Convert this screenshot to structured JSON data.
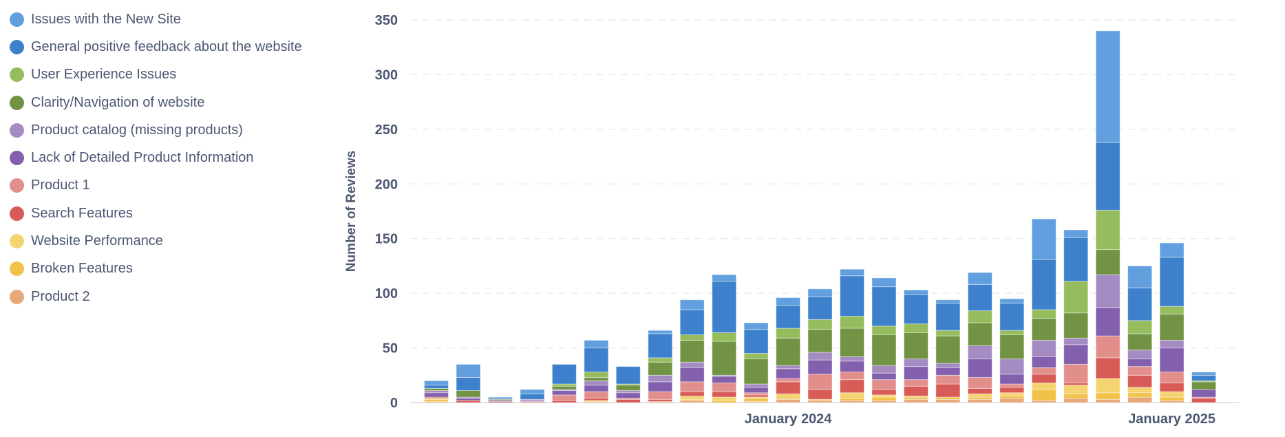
{
  "chart_data": {
    "type": "bar",
    "stacked": true,
    "ylabel": "Number of Reviews",
    "xlabel": "",
    "ylim": [
      0,
      350
    ],
    "yticks": [
      0,
      50,
      100,
      150,
      200,
      250,
      300,
      350
    ],
    "grid": true,
    "legend_position": "left",
    "categories": [
      "Feb 2023",
      "Mar 2023",
      "Apr 2023",
      "May 2023",
      "Jun 2023",
      "Jul 2023",
      "Aug 2023",
      "Sep 2023",
      "Oct 2023",
      "Nov 2023",
      "Dec 2023",
      "Jan 2024",
      "Feb 2024",
      "Mar 2024",
      "Apr 2024",
      "May 2024",
      "Jun 2024",
      "Jul 2024",
      "Aug 2024",
      "Sep 2024",
      "Oct 2024",
      "Nov 2024",
      "Dec 2024",
      "Jan 2025",
      "Feb 2025"
    ],
    "xticks": [
      {
        "category_index": 11,
        "label": "January 2024"
      },
      {
        "category_index": 23,
        "label": "January 2025"
      }
    ],
    "series": [
      {
        "name": "Issues with the New Site",
        "color": "#629fde",
        "values": [
          4,
          12,
          1,
          4,
          0,
          7,
          0,
          3,
          9,
          6,
          6,
          7,
          7,
          6,
          8,
          4,
          3,
          11,
          4,
          37,
          7,
          102,
          20,
          13,
          3
        ]
      },
      {
        "name": "General positive feedback about the website",
        "color": "#3d81cd",
        "values": [
          3,
          12,
          1,
          5,
          18,
          22,
          16,
          22,
          23,
          47,
          22,
          21,
          21,
          37,
          36,
          27,
          25,
          24,
          25,
          46,
          40,
          62,
          30,
          45,
          5
        ]
      },
      {
        "name": "User Experience Issues",
        "color": "#95bc5d",
        "values": [
          0,
          0,
          0,
          0,
          2,
          5,
          1,
          4,
          5,
          8,
          5,
          9,
          9,
          11,
          8,
          8,
          5,
          11,
          4,
          8,
          29,
          36,
          12,
          7,
          1
        ]
      },
      {
        "name": "Clarity/Navigation of website",
        "color": "#719343",
        "values": [
          2,
          6,
          1,
          0,
          3,
          3,
          5,
          12,
          20,
          31,
          23,
          25,
          21,
          26,
          28,
          24,
          25,
          21,
          22,
          20,
          23,
          23,
          15,
          24,
          7
        ]
      },
      {
        "name": "Product catalog (missing products)",
        "color": "#a48bc2",
        "values": [
          2,
          1,
          0,
          1,
          1,
          4,
          2,
          6,
          5,
          1,
          3,
          3,
          7,
          4,
          7,
          7,
          4,
          12,
          14,
          15,
          6,
          30,
          8,
          7,
          0
        ]
      },
      {
        "name": "Lack of Detailed Product Information",
        "color": "#8360ad",
        "values": [
          4,
          2,
          1,
          1,
          4,
          6,
          5,
          9,
          13,
          6,
          5,
          9,
          13,
          10,
          6,
          12,
          7,
          17,
          9,
          10,
          18,
          26,
          7,
          22,
          7
        ]
      },
      {
        "name": "Product 1",
        "color": "#e28f8c",
        "values": [
          0,
          0,
          0,
          1,
          5,
          6,
          1,
          7,
          9,
          8,
          2,
          3,
          14,
          7,
          9,
          6,
          8,
          10,
          3,
          6,
          17,
          20,
          8,
          10,
          1
        ]
      },
      {
        "name": "Search Features",
        "color": "#d95b58",
        "values": [
          1,
          2,
          1,
          0,
          2,
          2,
          3,
          2,
          4,
          5,
          2,
          11,
          9,
          12,
          5,
          9,
          12,
          5,
          5,
          8,
          2,
          19,
          11,
          8,
          4
        ]
      },
      {
        "name": "Website Performance",
        "color": "#f4d470",
        "values": [
          1,
          0,
          0,
          0,
          0,
          0,
          0,
          0,
          3,
          3,
          1,
          5,
          0,
          5,
          2,
          1,
          0,
          3,
          3,
          6,
          8,
          13,
          5,
          5,
          0
        ]
      },
      {
        "name": "Broken Features",
        "color": "#f0c247",
        "values": [
          2,
          0,
          0,
          0,
          0,
          1,
          0,
          0,
          1,
          2,
          3,
          0,
          1,
          2,
          3,
          2,
          2,
          2,
          2,
          10,
          4,
          6,
          4,
          3,
          0
        ]
      },
      {
        "name": "Product 2",
        "color": "#e8a97a",
        "values": [
          1,
          0,
          0,
          0,
          0,
          1,
          0,
          1,
          2,
          0,
          1,
          3,
          2,
          2,
          2,
          3,
          3,
          3,
          4,
          2,
          4,
          3,
          5,
          2,
          0
        ]
      }
    ]
  }
}
